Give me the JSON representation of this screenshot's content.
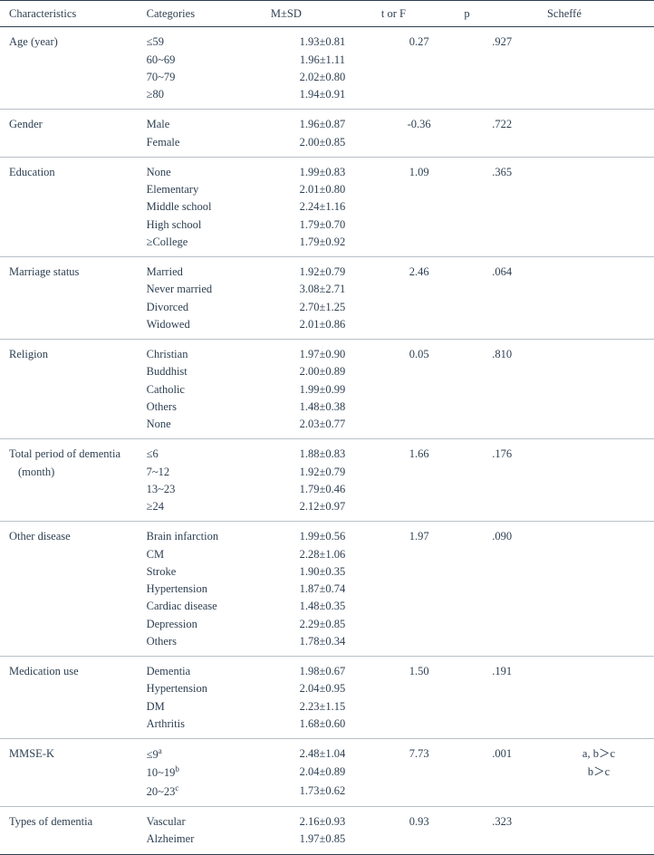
{
  "columns": {
    "char": "Characteristics",
    "cat": "Categories",
    "msd": "M±SD",
    "tf": "t or F",
    "p": "p",
    "sch": "Scheffé"
  },
  "sections": [
    {
      "char": "Age (year)",
      "tf": "0.27",
      "p": ".927",
      "sch": [
        "",
        "",
        "",
        ""
      ],
      "rows": [
        {
          "cat": "≤59",
          "msd": "1.93±0.81"
        },
        {
          "cat": "60~69",
          "msd": "1.96±1.11"
        },
        {
          "cat": "70~79",
          "msd": "2.02±0.80"
        },
        {
          "cat": "≥80",
          "msd": "1.94±0.91"
        }
      ]
    },
    {
      "char": "Gender",
      "tf": "-0.36",
      "p": ".722",
      "sch": [
        "",
        ""
      ],
      "rows": [
        {
          "cat": "Male",
          "msd": "1.96±0.87"
        },
        {
          "cat": "Female",
          "msd": "2.00±0.85"
        }
      ]
    },
    {
      "char": "Education",
      "tf": "1.09",
      "p": ".365",
      "sch": [
        "",
        "",
        "",
        "",
        ""
      ],
      "rows": [
        {
          "cat": "None",
          "msd": "1.99±0.83"
        },
        {
          "cat": "Elementary",
          "msd": "2.01±0.80"
        },
        {
          "cat": "Middle school",
          "msd": "2.24±1.16"
        },
        {
          "cat": "High school",
          "msd": "1.79±0.70"
        },
        {
          "cat": "≥College",
          "msd": "1.79±0.92"
        }
      ]
    },
    {
      "char": "Marriage status",
      "tf": "2.46",
      "p": ".064",
      "sch": [
        "",
        "",
        "",
        ""
      ],
      "rows": [
        {
          "cat": "Married",
          "msd": "1.92±0.79"
        },
        {
          "cat": "Never married",
          "msd": "3.08±2.71"
        },
        {
          "cat": "Divorced",
          "msd": "2.70±1.25"
        },
        {
          "cat": "Widowed",
          "msd": "2.01±0.86"
        }
      ]
    },
    {
      "char": "Religion",
      "tf": "0.05",
      "p": ".810",
      "sch": [
        "",
        "",
        "",
        "",
        ""
      ],
      "rows": [
        {
          "cat": "Christian",
          "msd": "1.97±0.90"
        },
        {
          "cat": "Buddhist",
          "msd": "2.00±0.89"
        },
        {
          "cat": "Catholic",
          "msd": "1.99±0.99"
        },
        {
          "cat": "Others",
          "msd": "1.48±0.38"
        },
        {
          "cat": "None",
          "msd": "2.03±0.77"
        }
      ]
    },
    {
      "char": "Total period of dementia",
      "char2": "(month)",
      "tf": "1.66",
      "p": ".176",
      "sch": [
        "",
        "",
        "",
        ""
      ],
      "rows": [
        {
          "cat": "≤6",
          "msd": "1.88±0.83"
        },
        {
          "cat": "7~12",
          "msd": "1.92±0.79"
        },
        {
          "cat": "13~23",
          "msd": "1.79±0.46"
        },
        {
          "cat": "≥24",
          "msd": "2.12±0.97"
        }
      ]
    },
    {
      "char": "Other disease",
      "tf": "1.97",
      "p": ".090",
      "sch": [
        "",
        "",
        "",
        "",
        "",
        "",
        ""
      ],
      "rows": [
        {
          "cat": "Brain infarction",
          "msd": "1.99±0.56"
        },
        {
          "cat": "CM",
          "msd": "2.28±1.06"
        },
        {
          "cat": "Stroke",
          "msd": "1.90±0.35"
        },
        {
          "cat": "Hypertension",
          "msd": "1.87±0.74"
        },
        {
          "cat": "Cardiac disease",
          "msd": "1.48±0.35"
        },
        {
          "cat": "Depression",
          "msd": "2.29±0.85"
        },
        {
          "cat": "Others",
          "msd": "1.78±0.34"
        }
      ]
    },
    {
      "char": "Medication use",
      "tf": "1.50",
      "p": ".191",
      "sch": [
        "",
        "",
        "",
        ""
      ],
      "rows": [
        {
          "cat": "Dementia",
          "msd": "1.98±0.67"
        },
        {
          "cat": "Hypertension",
          "msd": "2.04±0.95"
        },
        {
          "cat": "DM",
          "msd": "2.23±1.15"
        },
        {
          "cat": "Arthritis",
          "msd": "1.68±0.60"
        }
      ]
    },
    {
      "char": "MMSE-K",
      "tf": "7.73",
      "p": ".001",
      "sch": [
        "a, b＞c",
        "b＞c",
        ""
      ],
      "rows": [
        {
          "cat": "≤9",
          "sup": "a",
          "msd": "2.48±1.04"
        },
        {
          "cat": "10~19",
          "sup": "b",
          "msd": "2.04±0.89"
        },
        {
          "cat": "20~23",
          "sup": "c",
          "msd": "1.73±0.62"
        }
      ]
    },
    {
      "char": "Types of dementia",
      "tf": "0.93",
      "p": ".323",
      "sch": [
        "",
        ""
      ],
      "rows": [
        {
          "cat": "Vascular",
          "msd": "2.16±0.93"
        },
        {
          "cat": "Alzheimer",
          "msd": "1.97±0.85"
        }
      ],
      "lastBottom": true
    }
  ]
}
